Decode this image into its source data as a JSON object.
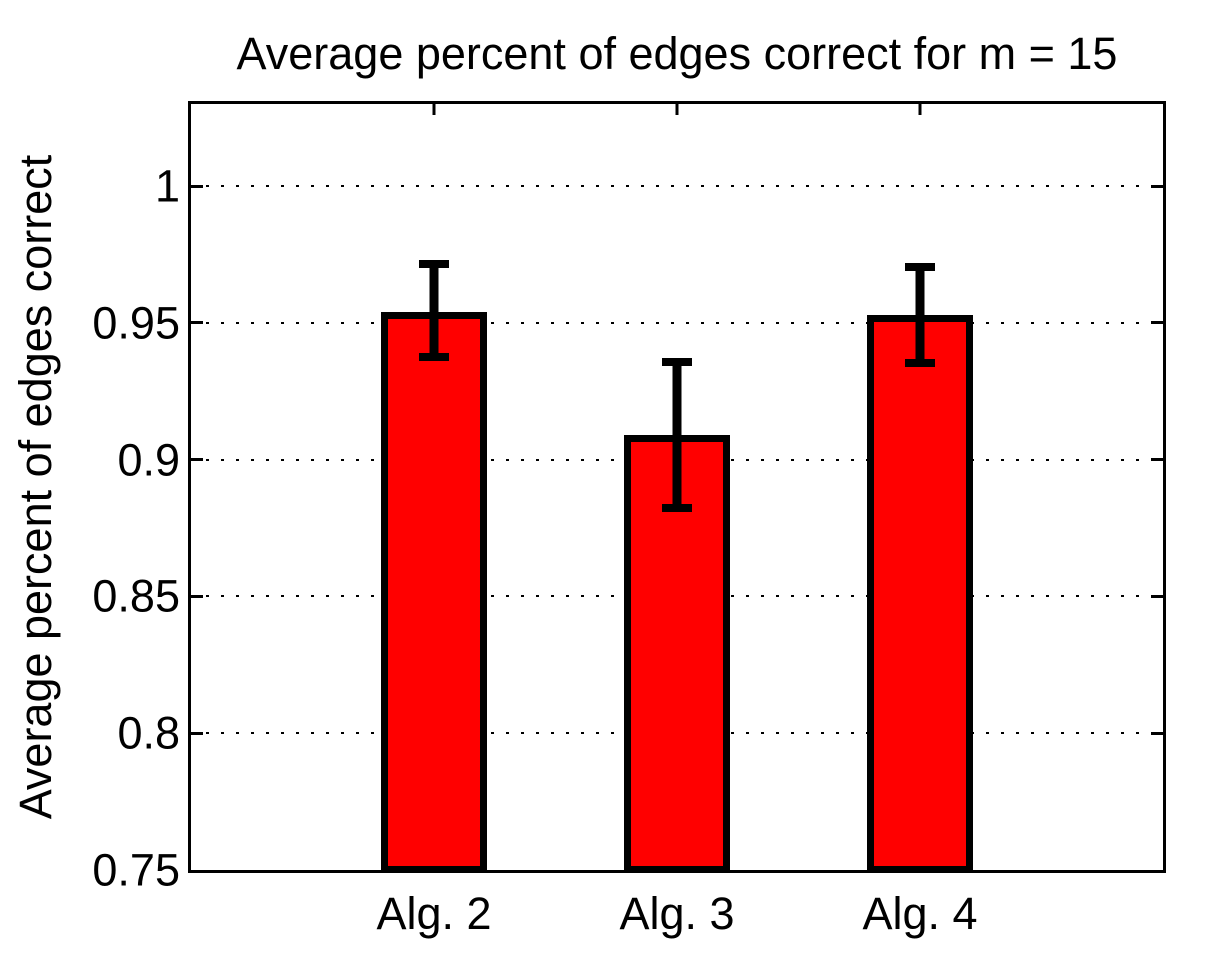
{
  "chart_data": {
    "type": "bar",
    "title": "Average percent of edges correct for m = 15",
    "xlabel": "",
    "ylabel": "Average percent of edges correct",
    "categories": [
      "Alg. 2",
      "Alg. 3",
      "Alg. 4"
    ],
    "values": [
      0.954,
      0.909,
      0.953
    ],
    "error_low": [
      0.936,
      0.881,
      0.934
    ],
    "error_high": [
      0.973,
      0.937,
      0.972
    ],
    "yticks": [
      0.75,
      0.8,
      0.85,
      0.9,
      0.95,
      1
    ],
    "ytick_labels": [
      "0.75",
      "0.8",
      "0.85",
      "0.9",
      "0.95",
      "1"
    ],
    "ylim": [
      0.75,
      1.03
    ],
    "grid": "dotted-horizontal-black",
    "legend": "none",
    "bar_color": "#ff0000",
    "edge_color": "#000000",
    "background_color": "#ffffff"
  }
}
